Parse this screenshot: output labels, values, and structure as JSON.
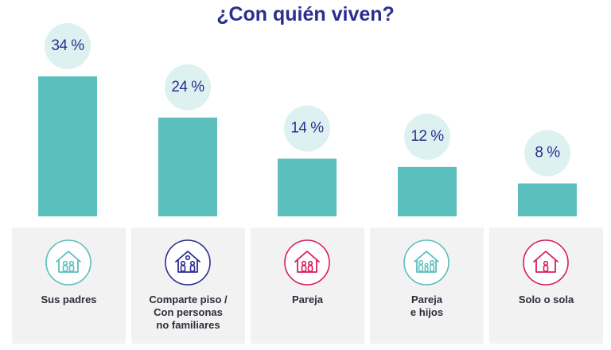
{
  "title": "¿Con quién viven?",
  "chart_data": {
    "type": "bar",
    "title": "¿Con quién viven?",
    "categories": [
      "Sus padres",
      "Comparte piso /\nCon personas\nno familiares",
      "Pareja",
      "Pareja\ne hijos",
      "Solo o sola"
    ],
    "values": [
      34,
      24,
      14,
      12,
      8
    ],
    "value_labels": [
      "34 %",
      "24 %",
      "14 %",
      "12 %",
      "8 %"
    ],
    "unit": "%",
    "ylim": [
      0,
      34
    ],
    "grid": false,
    "bar_color": "#5bbfbd",
    "label_bubble_color": "#def1f1"
  },
  "categories_cards": [
    {
      "label": "Sus padres",
      "icon": "house-family-icon",
      "icon_color": "#5bbfbd"
    },
    {
      "label": "Comparte piso /\nCon personas\nno familiares",
      "icon": "house-roommates-icon",
      "icon_color": "#2b2e8f"
    },
    {
      "label": "Pareja",
      "icon": "house-couple-icon",
      "icon_color": "#d81e5b"
    },
    {
      "label": "Pareja\ne hijos",
      "icon": "house-couple-children-icon",
      "icon_color": "#5bbfbd"
    },
    {
      "label": "Solo o sola",
      "icon": "house-single-icon",
      "icon_color": "#d81e5b"
    }
  ],
  "colors": {
    "title": "#2b2e8f",
    "card_bg": "#f2f2f2",
    "label_text": "#2d2d3a"
  }
}
